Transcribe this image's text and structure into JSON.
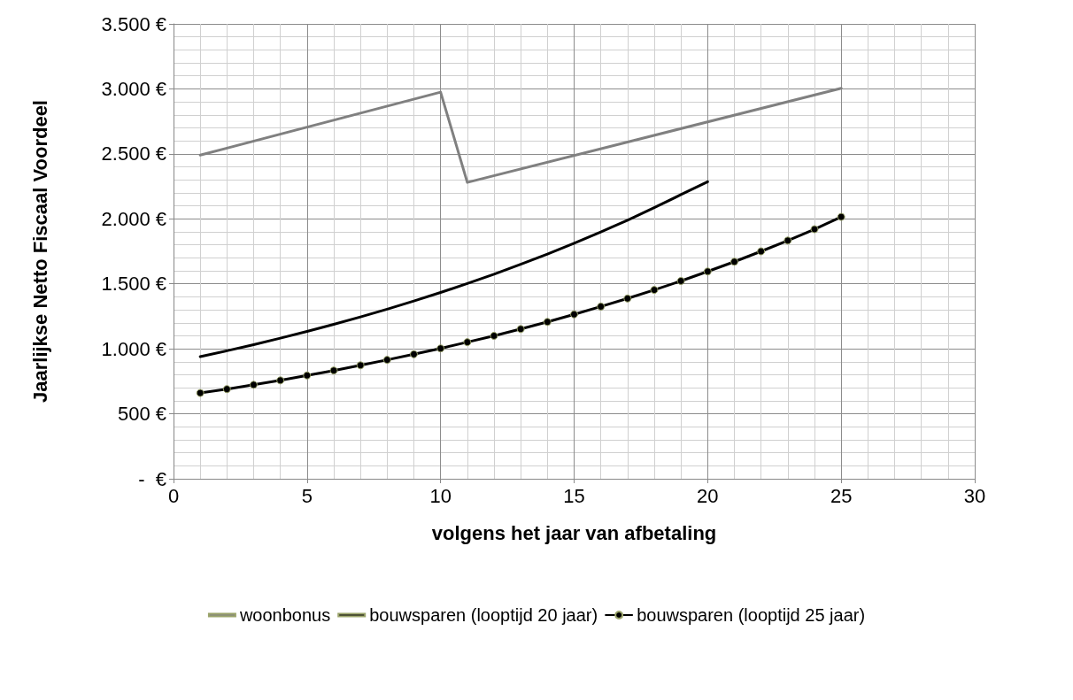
{
  "chart_data": {
    "type": "line",
    "xlabel": "volgens het jaar van afbetaling",
    "ylabel": "Jaarlijkse Netto Fiscaal Voordeel",
    "xlim": [
      0,
      30
    ],
    "xticks": [
      0,
      5,
      10,
      15,
      20,
      25,
      30
    ],
    "ylim": [
      0,
      3500
    ],
    "yticks": [
      {
        "value": 0,
        "label": "-  €"
      },
      {
        "value": 500,
        "label": "500 €"
      },
      {
        "value": 1000,
        "label": "1.000 €"
      },
      {
        "value": 1500,
        "label": "1.500 €"
      },
      {
        "value": 2000,
        "label": "2.000 €"
      },
      {
        "value": 2500,
        "label": "2.500 €"
      },
      {
        "value": 3000,
        "label": "3.000 €"
      },
      {
        "value": 3500,
        "label": "3.500 €"
      }
    ],
    "grid": true,
    "legend": "bottom",
    "line_style": "solid",
    "series": [
      {
        "name": "woonbonus",
        "color": "#808080",
        "marker": "none",
        "x": [
          1,
          10,
          11,
          25
        ],
        "values": [
          2490,
          2975,
          2280,
          3005
        ]
      },
      {
        "name": "bouwsparen (looptijd 20 jaar)",
        "color": "#000000",
        "marker": "none",
        "x": [
          1,
          2,
          3,
          4,
          5,
          6,
          7,
          8,
          9,
          10,
          11,
          12,
          13,
          14,
          15,
          16,
          17,
          18,
          19,
          20
        ],
        "values": [
          940,
          985,
          1032,
          1082,
          1134,
          1188,
          1245,
          1305,
          1368,
          1433,
          1502,
          1574,
          1650,
          1729,
          1812,
          1899,
          1990,
          2086,
          2186,
          2285
        ]
      },
      {
        "name": "bouwsparen (looptijd 25 jaar)",
        "color": "#000000",
        "marker": "circle",
        "x": [
          1,
          2,
          3,
          4,
          5,
          6,
          7,
          8,
          9,
          10,
          11,
          12,
          13,
          14,
          15,
          16,
          17,
          18,
          19,
          20,
          21,
          22,
          23,
          24,
          25
        ],
        "values": [
          660,
          690,
          723,
          757,
          795,
          833,
          873,
          915,
          958,
          1003,
          1051,
          1100,
          1152,
          1207,
          1265,
          1325,
          1387,
          1453,
          1522,
          1595,
          1670,
          1750,
          1833,
          1920,
          2015
        ]
      }
    ]
  }
}
